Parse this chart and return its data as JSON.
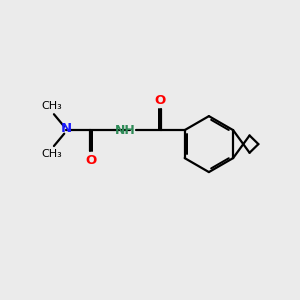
{
  "bg_color": "#ebebeb",
  "bond_color": "#000000",
  "color_N_blue": "#1a1aff",
  "color_N_teal": "#2e8b57",
  "color_O": "#ff0000",
  "bond_lw": 1.6,
  "fig_size": [
    3.0,
    3.0
  ],
  "dpi": 100,
  "xlim": [
    0,
    10
  ],
  "ylim": [
    0,
    10
  ]
}
